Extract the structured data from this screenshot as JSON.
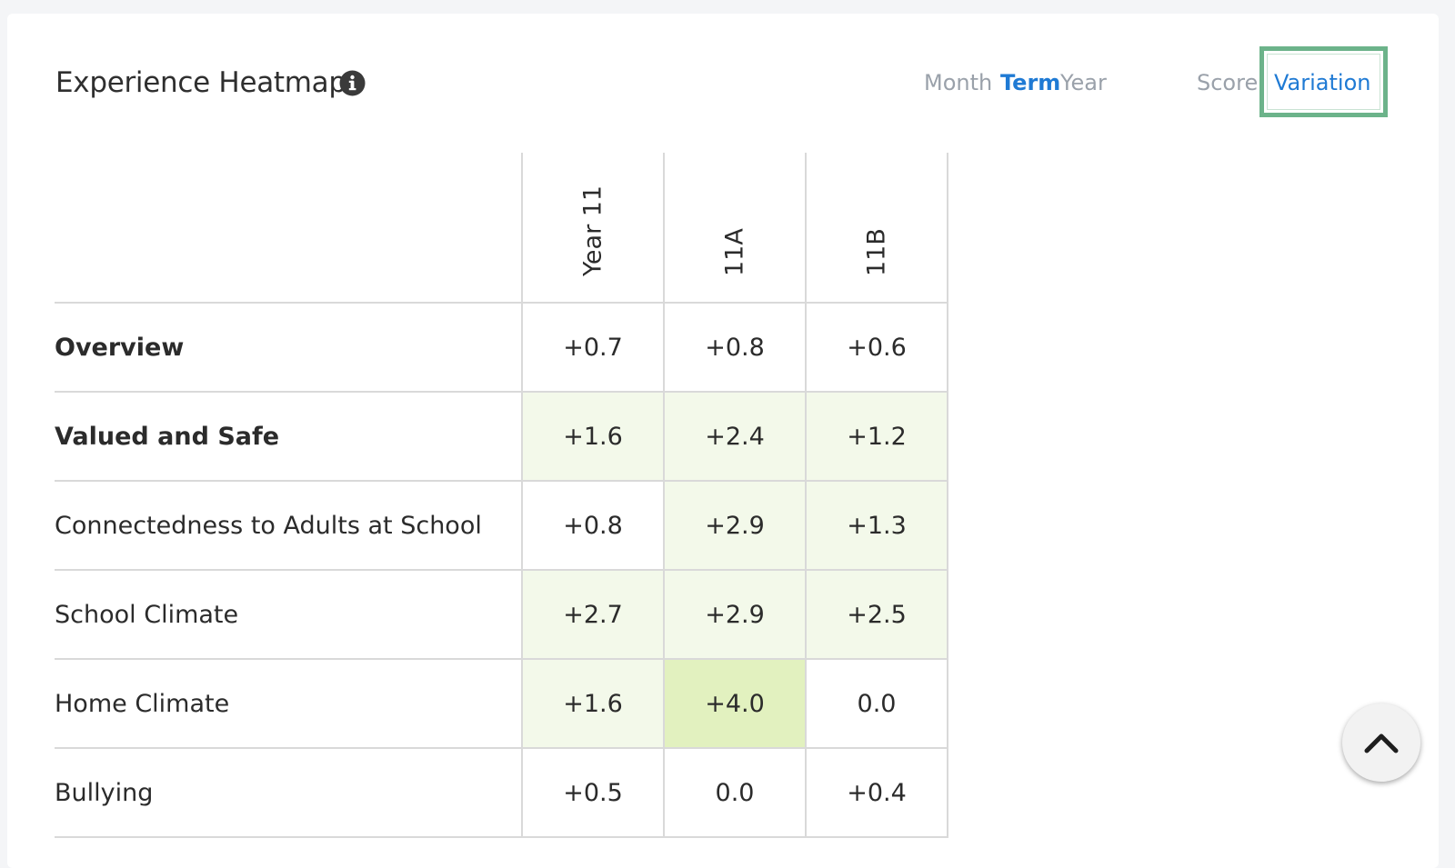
{
  "header": {
    "title": "Experience Heatmap",
    "info_icon": "info-circle-icon",
    "period_options": [
      "Month",
      "Term",
      "Year"
    ],
    "period_selected": "Term",
    "metric_options": [
      "Score",
      "Variation"
    ],
    "metric_selected": "Variation"
  },
  "heatmap": {
    "columns": [
      "Year 11",
      "11A",
      "11B"
    ],
    "rows": [
      {
        "label": "Overview",
        "bold": true,
        "values": [
          "+0.7",
          "+0.8",
          "+0.6"
        ]
      },
      {
        "label": "Valued and Safe",
        "bold": true,
        "values": [
          "+1.6",
          "+2.4",
          "+1.2"
        ]
      },
      {
        "label": "Connectedness to Adults at School",
        "bold": false,
        "values": [
          "+0.8",
          "+2.9",
          "+1.3"
        ]
      },
      {
        "label": "School Climate",
        "bold": false,
        "values": [
          "+2.7",
          "+2.9",
          "+2.5"
        ]
      },
      {
        "label": "Home Climate",
        "bold": false,
        "values": [
          "+1.6",
          "+4.0",
          "0.0"
        ]
      },
      {
        "label": "Bullying",
        "bold": false,
        "values": [
          "+0.5",
          "0.0",
          "+0.4"
        ]
      }
    ],
    "colors": {
      "none": "#ffffff",
      "light": "#f3f9ea",
      "medium": "#e2f1bf"
    }
  },
  "scroll_top_button": {
    "icon": "chevron-up-icon"
  },
  "colors": {
    "accent": "#1f7ad4",
    "muted": "#9aa1aa",
    "highlight_border": "#6cb38a",
    "grid": "#d9d9d9"
  }
}
